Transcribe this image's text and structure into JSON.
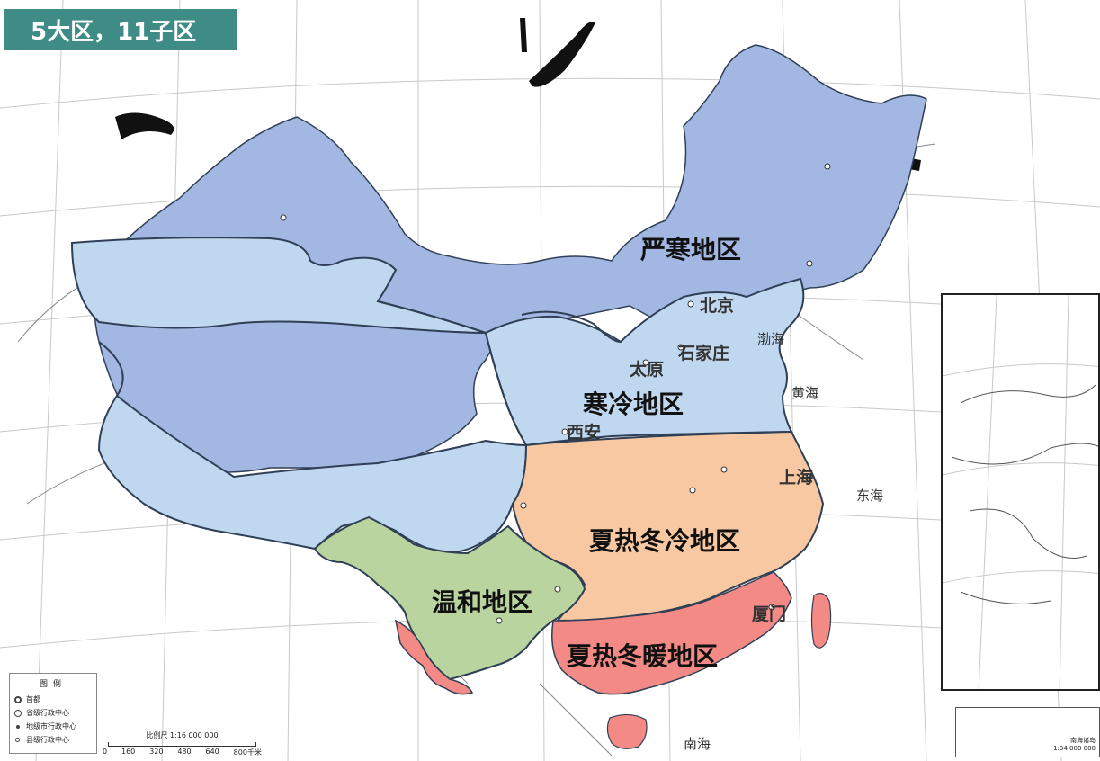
{
  "title": "5大区，11子区",
  "zones": {
    "severe_cold": "严寒地区",
    "cold": "寒冷地区",
    "hot_summer_cold_winter": "夏热冬冷地区",
    "hot_summer_warm_winter": "夏热冬暖地区",
    "mild": "温和地区"
  },
  "cities": {
    "beijing": "北京",
    "shijiazhuang": "石家庄",
    "taiyuan": "太原",
    "xian": "西安",
    "shanghai": "上海",
    "xiamen": "厦门"
  },
  "legend": {
    "title": "图例",
    "items": [
      "首都",
      "省级行政中心",
      "地级市行政中心",
      "县级行政中心"
    ]
  },
  "scale": {
    "label": "比例尺 1:16 000 000",
    "ticks": [
      "0",
      "160",
      "320",
      "480",
      "640",
      "800千米"
    ]
  },
  "inset": {
    "label": "南海诸岛",
    "scale": "1:34 000 000"
  },
  "seas": {
    "bohai": "渤海",
    "yellow_sea": "黄海",
    "east_sea": "东海",
    "south_sea": "南海"
  },
  "colors": {
    "severe_cold": "#a3b7e3",
    "cold": "#c0d7f0",
    "hot_summer_cold_winter": "#f8c8a2",
    "hot_summer_warm_winter": "#f48a86",
    "mild": "#b9d49e",
    "title_bg": "#3f8c87",
    "boundary": "#2f3f55"
  }
}
